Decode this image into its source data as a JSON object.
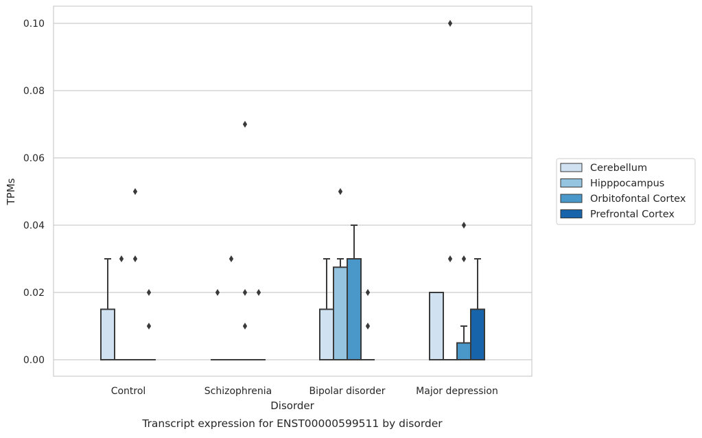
{
  "chart_data": {
    "type": "box",
    "title": "",
    "caption": "Transcript expression for ENST00000599511 by disorder",
    "xlabel": "Disorder",
    "ylabel": "TPMs",
    "ylim": [
      -0.005,
      0.105
    ],
    "yticks": [
      "0.00",
      "0.02",
      "0.04",
      "0.06",
      "0.08",
      "0.10"
    ],
    "ytick_values": [
      0.0,
      0.02,
      0.04,
      0.06,
      0.08,
      0.1
    ],
    "grid": "horizontal",
    "legend_position": "right",
    "categories": [
      "Control",
      "Schizophrenia",
      "Bipolar disorder",
      "Major depression"
    ],
    "series": [
      {
        "name": "Cerebellum",
        "color": "#d0e1f2",
        "boxes": [
          {
            "q1": 0.0,
            "median": 0.0,
            "q3": 0.015,
            "whisker_low": 0.0,
            "whisker_high": 0.03,
            "outliers": []
          },
          {
            "q1": 0.0,
            "median": 0.0,
            "q3": 0.0,
            "whisker_low": 0.0,
            "whisker_high": 0.0,
            "outliers": [
              0.02
            ]
          },
          {
            "q1": 0.0,
            "median": 0.0,
            "q3": 0.015,
            "whisker_low": 0.0,
            "whisker_high": 0.03,
            "outliers": []
          },
          {
            "q1": 0.0,
            "median": 0.0,
            "q3": 0.02,
            "whisker_low": 0.0,
            "whisker_high": 0.02,
            "outliers": []
          }
        ]
      },
      {
        "name": "Hipppocampus",
        "color": "#94c4df",
        "boxes": [
          {
            "q1": 0.0,
            "median": 0.0,
            "q3": 0.0,
            "whisker_low": 0.0,
            "whisker_high": 0.0,
            "outliers": [
              0.03
            ]
          },
          {
            "q1": 0.0,
            "median": 0.0,
            "q3": 0.0,
            "whisker_low": 0.0,
            "whisker_high": 0.0,
            "outliers": [
              0.03
            ]
          },
          {
            "q1": 0.0,
            "median": 0.0,
            "q3": 0.0275,
            "whisker_low": 0.0,
            "whisker_high": 0.03,
            "outliers": [
              0.05
            ]
          },
          {
            "q1": 0.0,
            "median": 0.0,
            "q3": 0.0,
            "whisker_low": 0.0,
            "whisker_high": 0.0,
            "outliers": [
              0.03,
              0.1
            ]
          }
        ]
      },
      {
        "name": "Orbitofontal Cortex",
        "color": "#4a98c9",
        "boxes": [
          {
            "q1": 0.0,
            "median": 0.0,
            "q3": 0.0,
            "whisker_low": 0.0,
            "whisker_high": 0.0,
            "outliers": [
              0.03,
              0.05
            ]
          },
          {
            "q1": 0.0,
            "median": 0.0,
            "q3": 0.0,
            "whisker_low": 0.0,
            "whisker_high": 0.0,
            "outliers": [
              0.01,
              0.02,
              0.07
            ]
          },
          {
            "q1": 0.0,
            "median": 0.0,
            "q3": 0.03,
            "whisker_low": 0.0,
            "whisker_high": 0.04,
            "outliers": []
          },
          {
            "q1": 0.0,
            "median": 0.0,
            "q3": 0.005,
            "whisker_low": 0.0,
            "whisker_high": 0.01,
            "outliers": [
              0.03,
              0.04
            ]
          }
        ]
      },
      {
        "name": "Prefrontal Cortex",
        "color": "#1764ab",
        "boxes": [
          {
            "q1": 0.0,
            "median": 0.0,
            "q3": 0.0,
            "whisker_low": 0.0,
            "whisker_high": 0.0,
            "outliers": [
              0.01,
              0.02
            ]
          },
          {
            "q1": 0.0,
            "median": 0.0,
            "q3": 0.0,
            "whisker_low": 0.0,
            "whisker_high": 0.0,
            "outliers": [
              0.02
            ]
          },
          {
            "q1": 0.0,
            "median": 0.0,
            "q3": 0.0,
            "whisker_low": 0.0,
            "whisker_high": 0.0,
            "outliers": [
              0.01,
              0.02
            ]
          },
          {
            "q1": 0.0,
            "median": 0.0,
            "q3": 0.015,
            "whisker_low": 0.0,
            "whisker_high": 0.03,
            "outliers": []
          }
        ]
      }
    ]
  }
}
